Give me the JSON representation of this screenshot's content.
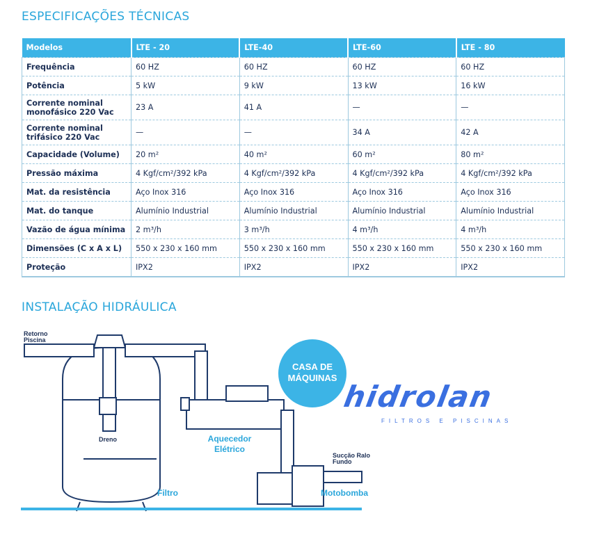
{
  "specs_title": "ESPECIFICAÇÕES TÉCNICAS",
  "table": {
    "headers": [
      "Modelos",
      "LTE - 20",
      "LTE-40",
      "LTE-60",
      "LTE - 80"
    ],
    "rows": [
      [
        "Frequência",
        "60 HZ",
        "60 HZ",
        "60 HZ",
        "60 HZ"
      ],
      [
        "Potência",
        "5 kW",
        "9 kW",
        "13 kW",
        "16 kW"
      ],
      [
        "Corrente nominal monofásico 220 Vac",
        "23 A",
        "41 A",
        "—",
        "—"
      ],
      [
        "Corrente nominal trifásico 220 Vac",
        "—",
        "—",
        "34 A",
        "42 A"
      ],
      [
        "Capacidade (Volume)",
        "20 m²",
        "40 m²",
        "60 m²",
        "80 m²"
      ],
      [
        "Pressão máxima",
        "4 Kgf/cm²/392 kPa",
        "4 Kgf/cm²/392 kPa",
        "4 Kgf/cm²/392 kPa",
        "4 Kgf/cm²/392 kPa"
      ],
      [
        "Mat. da resistência",
        "Aço Inox 316",
        "Aço Inox 316",
        "Aço Inox 316",
        "Aço Inox 316"
      ],
      [
        "Mat. do tanque",
        "Alumínio Industrial",
        "Alumínio Industrial",
        "Alumínio Industrial",
        "Alumínio Industrial"
      ],
      [
        "Vazão de água mínima",
        "2 m³/h",
        "3 m³/h",
        "4 m³/h",
        "4 m³/h"
      ],
      [
        "Dimensões (C x A x L)",
        "550 x 230 x 160 mm",
        "550 x 230 x 160 mm",
        "550 x 230 x 160 mm",
        "550 x 230 x 160 mm"
      ],
      [
        "Proteção",
        "IPX2",
        "IPX2",
        "IPX2",
        "IPX2"
      ]
    ]
  },
  "install_title": "INSTALAÇÃO HIDRÁULICA",
  "diagram": {
    "retorno": "Retorno Piscina",
    "dreno": "Dreno",
    "filtro": "Filtro",
    "aquecedor": "Aquecedor Elétrico",
    "succao": "Sucção Ralo Fundo",
    "motobomba": "Motobomba",
    "badge": "CASA DE MÁQUINAS"
  },
  "logo": {
    "name": "hidrolan",
    "tagline": "FILTROS E PISCINAS"
  },
  "colors": {
    "accent": "#3cb4e6",
    "title": "#2aa6db",
    "line": "#1e3a6a",
    "logo": "#3a6fe0"
  }
}
